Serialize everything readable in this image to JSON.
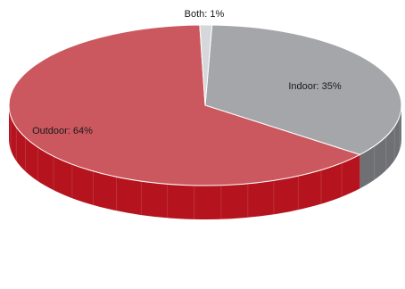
{
  "chart_data": {
    "type": "pie",
    "title": "",
    "slices": [
      {
        "name": "Indoor",
        "value": 35,
        "label": "Indoor: 35%",
        "top_color": "#a5a6aa",
        "side_color": "#6f7074"
      },
      {
        "name": "Outdoor",
        "value": 64,
        "label": "Outdoor: 64%",
        "top_color": "#cb585e",
        "side_color": "#b5141e"
      },
      {
        "name": "Both",
        "value": 1,
        "label": "Both: 1%",
        "top_color": "#d6d7da",
        "side_color": "#9d9ea2"
      }
    ],
    "start_angle_deg": -88,
    "legend": "none",
    "style": "3d"
  }
}
